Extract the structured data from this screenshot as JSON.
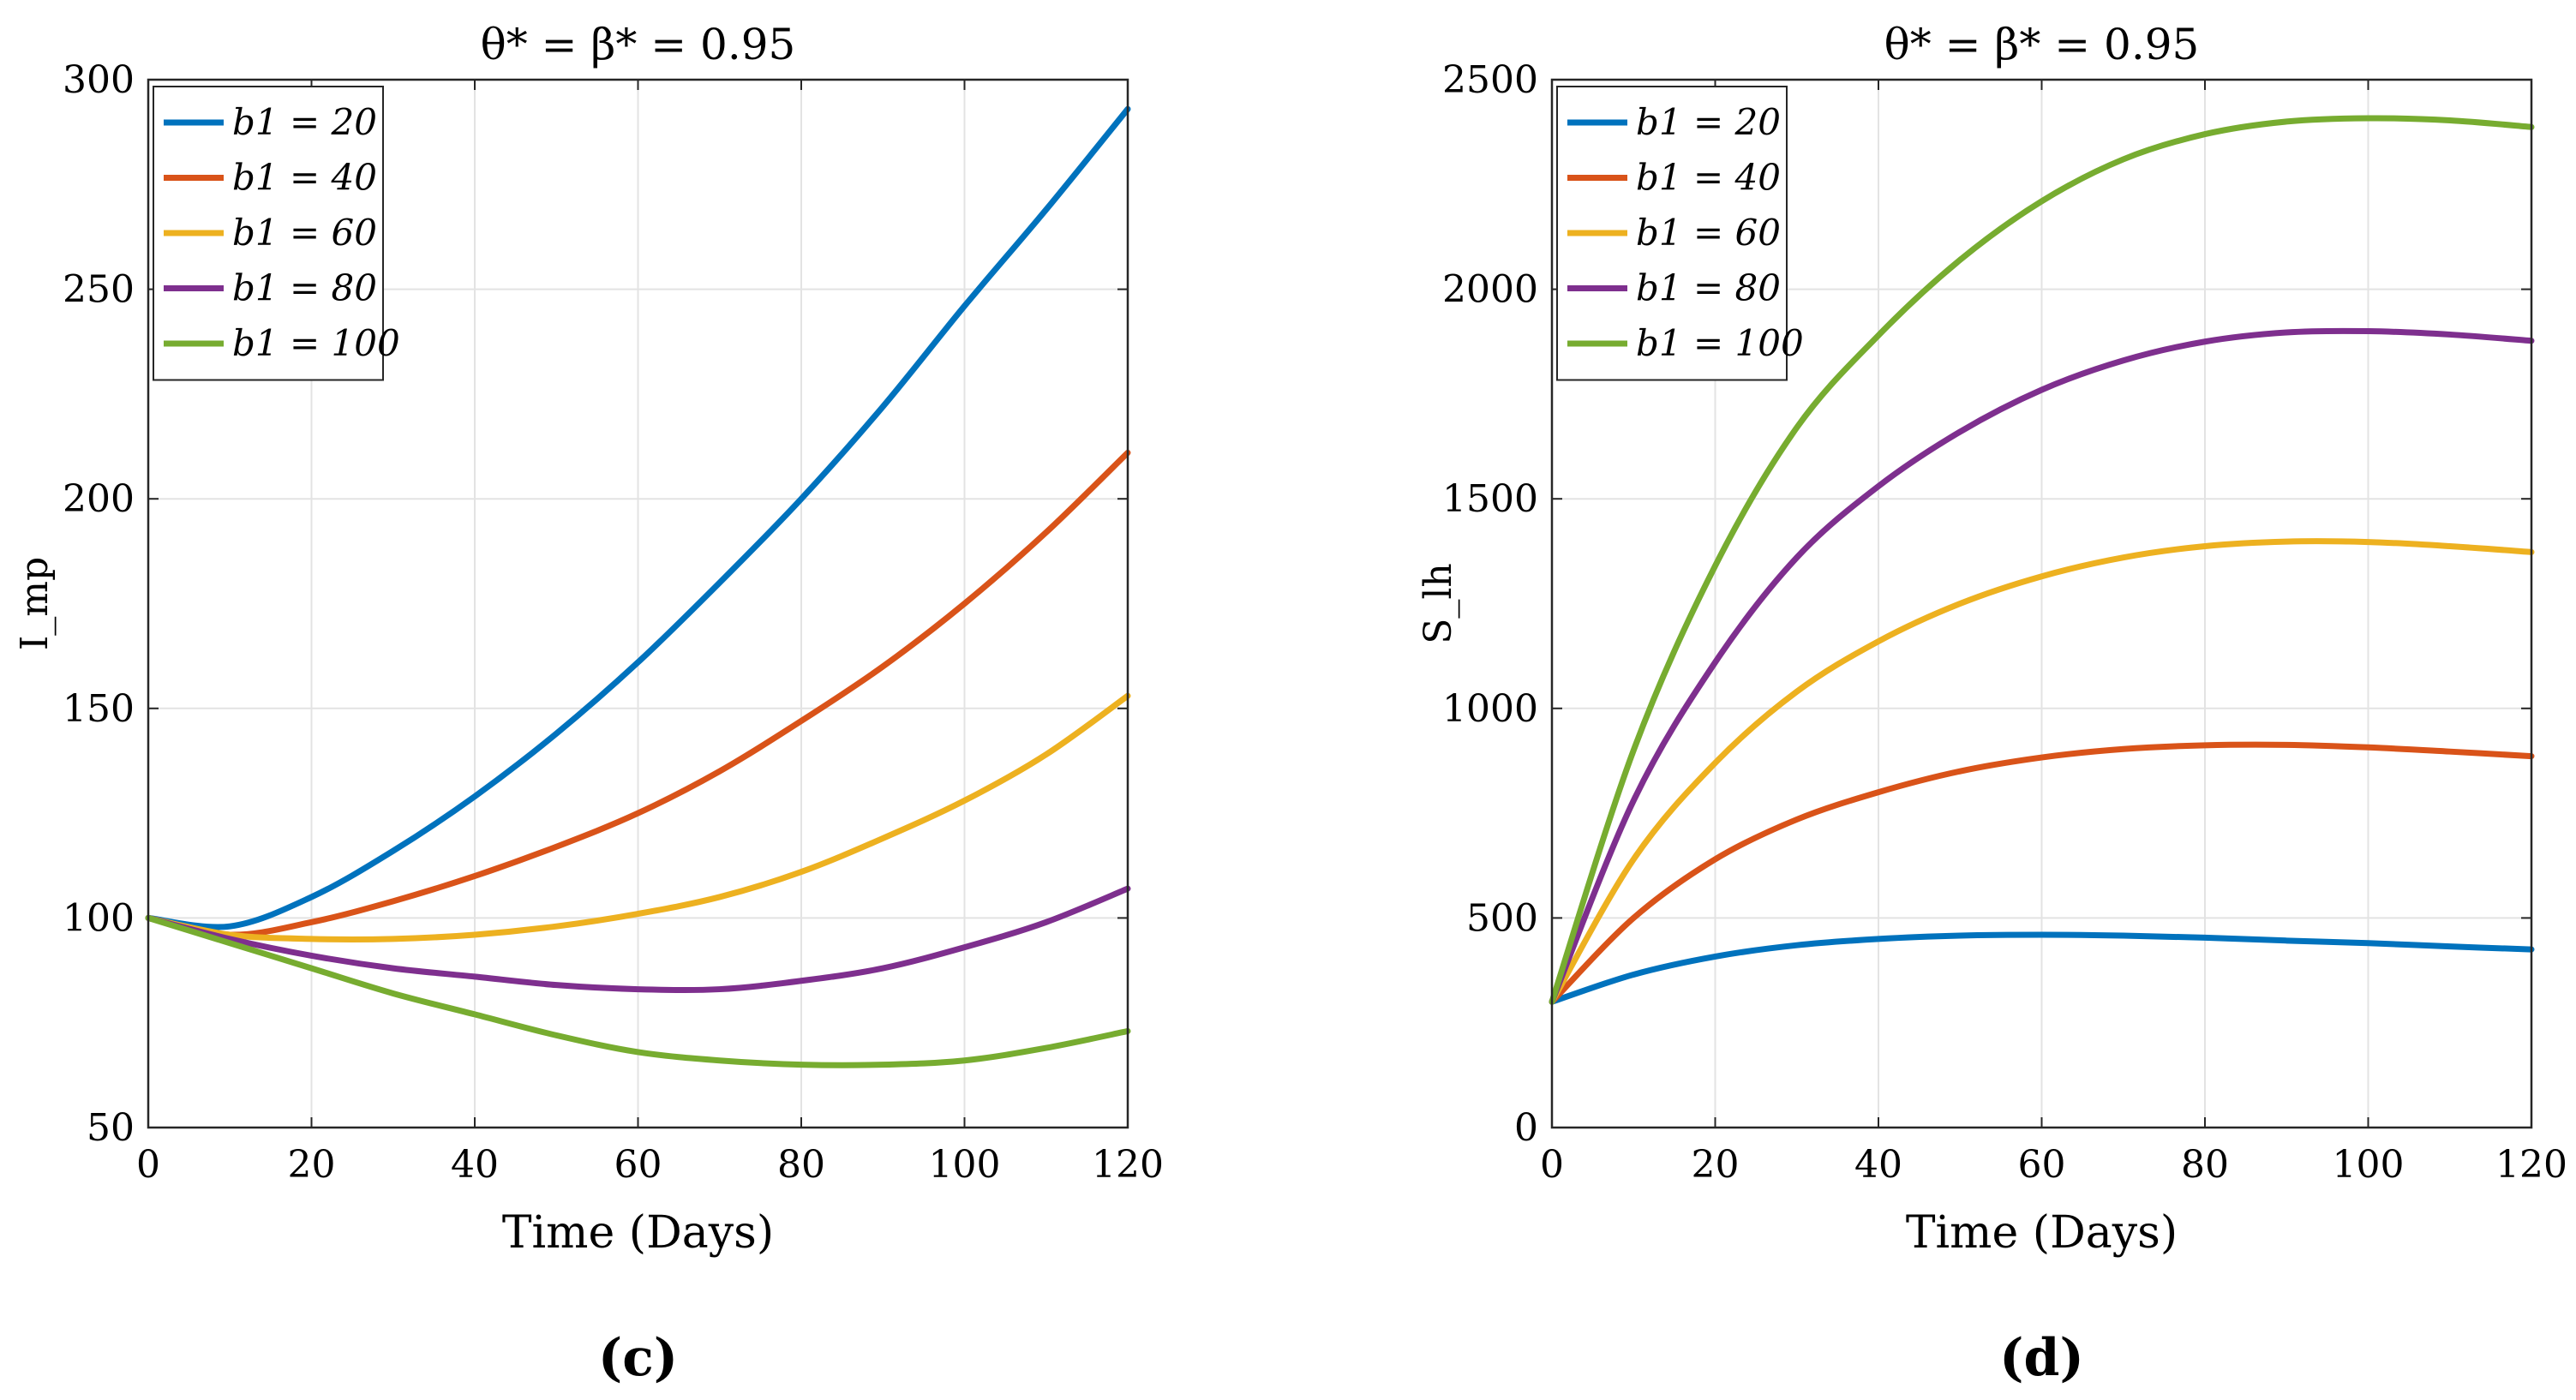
{
  "chart_data": [
    {
      "type": "line",
      "panel_label": "(c)",
      "title": "θ* = β* = 0.95",
      "xlabel": "Time (Days)",
      "ylabel": "I_mp",
      "xlim": [
        0,
        120
      ],
      "ylim": [
        50,
        300
      ],
      "xticks": [
        "0",
        "20",
        "40",
        "60",
        "80",
        "100",
        "120"
      ],
      "yticks": [
        "50",
        "100",
        "150",
        "200",
        "250",
        "300"
      ],
      "grid": true,
      "legend_position": "top-left",
      "x": [
        0,
        10,
        20,
        30,
        40,
        50,
        60,
        70,
        80,
        90,
        100,
        110,
        120
      ],
      "series": [
        {
          "name": "b1 = 20",
          "color": "#0072BD",
          "values": [
            100,
            98,
            105,
            116,
            129,
            144,
            161,
            180,
            200,
            222,
            246,
            269,
            293
          ]
        },
        {
          "name": "b1 = 40",
          "color": "#D95319",
          "values": [
            100,
            96,
            99,
            104,
            110,
            117,
            125,
            135,
            147,
            160,
            175,
            192,
            211
          ]
        },
        {
          "name": "b1 = 60",
          "color": "#EDB120",
          "values": [
            100,
            96,
            95,
            95,
            96,
            98,
            101,
            105,
            111,
            119,
            128,
            139,
            153
          ]
        },
        {
          "name": "b1 = 80",
          "color": "#7E2F8E",
          "values": [
            100,
            95,
            91,
            88,
            86,
            84,
            83,
            83,
            85,
            88,
            93,
            99,
            107
          ]
        },
        {
          "name": "b1 = 100",
          "color": "#77AC30",
          "values": [
            100,
            94,
            88,
            82,
            77,
            72,
            68,
            66,
            65,
            65,
            66,
            69,
            73
          ]
        }
      ]
    },
    {
      "type": "line",
      "panel_label": "(d)",
      "title": "θ* = β* = 0.95",
      "xlabel": "Time (Days)",
      "ylabel": "S_lh",
      "xlim": [
        0,
        120
      ],
      "ylim": [
        0,
        2500
      ],
      "xticks": [
        "0",
        "20",
        "40",
        "60",
        "80",
        "100",
        "120"
      ],
      "yticks": [
        "0",
        "500",
        "1000",
        "1500",
        "2000",
        "2500"
      ],
      "grid": true,
      "legend_position": "top-left",
      "x": [
        0,
        10,
        20,
        30,
        40,
        50,
        60,
        70,
        80,
        90,
        100,
        110,
        120
      ],
      "series": [
        {
          "name": "b1 = 20",
          "color": "#0072BD",
          "values": [
            300,
            365,
            408,
            435,
            450,
            458,
            460,
            458,
            453,
            446,
            440,
            432,
            425
          ]
        },
        {
          "name": "b1 = 40",
          "color": "#D95319",
          "values": [
            300,
            500,
            640,
            735,
            800,
            850,
            883,
            903,
            912,
            913,
            907,
            897,
            886
          ]
        },
        {
          "name": "b1 = 60",
          "color": "#EDB120",
          "values": [
            300,
            640,
            870,
            1040,
            1160,
            1250,
            1315,
            1360,
            1387,
            1398,
            1397,
            1387,
            1373
          ]
        },
        {
          "name": "b1 = 80",
          "color": "#7E2F8E",
          "values": [
            300,
            780,
            1110,
            1360,
            1530,
            1660,
            1760,
            1830,
            1875,
            1897,
            1900,
            1892,
            1877
          ]
        },
        {
          "name": "b1 = 100",
          "color": "#77AC30",
          "values": [
            300,
            900,
            1340,
            1670,
            1890,
            2070,
            2210,
            2310,
            2370,
            2400,
            2408,
            2403,
            2387
          ]
        }
      ]
    }
  ]
}
